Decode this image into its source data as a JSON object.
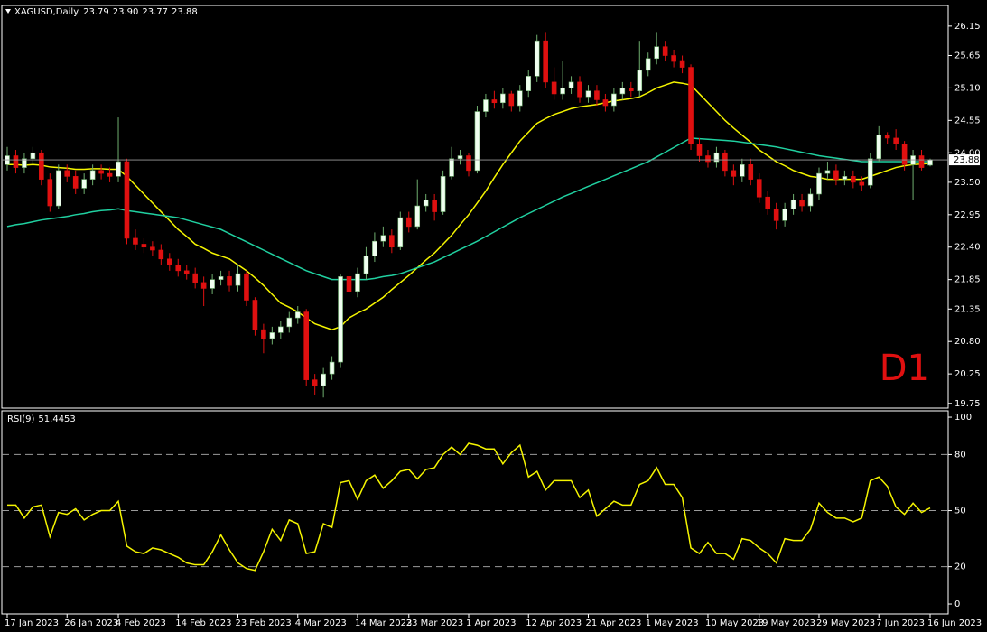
{
  "chart_data": [
    {
      "type": "candlestick",
      "title": "XAGUSD,Daily",
      "annotation": "D1",
      "value_labels": [
        "23.79",
        "23.90",
        "23.77",
        "23.88"
      ],
      "up_color": "#f0fff0",
      "down_color": "#e01010",
      "wick_color": "#6fae6f",
      "ylim": [
        19.67,
        26.5
      ],
      "yticks": [
        19.75,
        20.25,
        {
          "value": 20.8,
          "label": "20.80"
        },
        21.35,
        21.85,
        {
          "value": 22.4,
          "label": "22.40"
        },
        22.95,
        {
          "value": 23.5,
          "label": "23.50"
        },
        {
          "value": 24,
          "label": "24.00"
        },
        24.55,
        {
          "value": 25.1,
          "label": "25.10"
        },
        25.65,
        26.15
      ],
      "categories": [
        "17 Jan 2023",
        null,
        null,
        null,
        null,
        null,
        null,
        "26 Jan 2023",
        null,
        null,
        null,
        null,
        null,
        "4 Feb 2023",
        null,
        null,
        null,
        null,
        null,
        null,
        "14 Feb 2023",
        null,
        null,
        null,
        null,
        null,
        null,
        "23 Feb 2023",
        null,
        null,
        null,
        null,
        null,
        null,
        "4 Mar 2023",
        null,
        null,
        null,
        null,
        null,
        null,
        "14 Mar 2023",
        null,
        null,
        null,
        null,
        null,
        "23 Mar 2023",
        null,
        null,
        null,
        null,
        null,
        null,
        "1 Apr 2023",
        null,
        null,
        null,
        null,
        null,
        null,
        "12 Apr 2023",
        null,
        null,
        null,
        null,
        null,
        null,
        "21 Apr 2023",
        null,
        null,
        null,
        null,
        null,
        null,
        "1 May 2023",
        null,
        null,
        null,
        null,
        null,
        null,
        "10 May 2023",
        null,
        null,
        null,
        null,
        null,
        "19 May 2023",
        null,
        null,
        null,
        null,
        null,
        null,
        "29 May 2023",
        null,
        null,
        null,
        null,
        null,
        null,
        "7 Jun 2023",
        null,
        null,
        null,
        null,
        null,
        "16 Jun 2023"
      ],
      "ohlc": [
        [
          23.8,
          24.1,
          23.7,
          23.95
        ],
        [
          23.95,
          24.05,
          23.65,
          23.75
        ],
        [
          23.75,
          24.0,
          23.65,
          23.9
        ],
        [
          23.9,
          24.1,
          23.8,
          24.0
        ],
        [
          24.0,
          24.05,
          23.45,
          23.55
        ],
        [
          23.55,
          23.65,
          23.0,
          23.1
        ],
        [
          23.1,
          23.8,
          23.05,
          23.7
        ],
        [
          23.7,
          23.8,
          23.5,
          23.6
        ],
        [
          23.6,
          23.7,
          23.3,
          23.4
        ],
        [
          23.4,
          23.65,
          23.3,
          23.55
        ],
        [
          23.55,
          23.8,
          23.45,
          23.7
        ],
        [
          23.7,
          23.8,
          23.55,
          23.65
        ],
        [
          23.65,
          23.75,
          23.5,
          23.6
        ],
        [
          23.6,
          24.6,
          23.5,
          23.85
        ],
        [
          23.85,
          23.9,
          22.45,
          22.55
        ],
        [
          22.55,
          22.7,
          22.35,
          22.45
        ],
        [
          22.45,
          22.55,
          22.3,
          22.4
        ],
        [
          22.4,
          22.5,
          22.25,
          22.35
        ],
        [
          22.35,
          22.45,
          22.1,
          22.2
        ],
        [
          22.2,
          22.3,
          22.0,
          22.1
        ],
        [
          22.1,
          22.2,
          21.9,
          22.0
        ],
        [
          22.0,
          22.1,
          21.85,
          21.95
        ],
        [
          21.95,
          22.05,
          21.7,
          21.8
        ],
        [
          21.8,
          21.9,
          21.4,
          21.7
        ],
        [
          21.7,
          21.95,
          21.6,
          21.85
        ],
        [
          21.85,
          22.0,
          21.75,
          21.9
        ],
        [
          21.9,
          22.0,
          21.65,
          21.75
        ],
        [
          21.75,
          22.1,
          21.65,
          21.95
        ],
        [
          21.95,
          22.0,
          21.4,
          21.5
        ],
        [
          21.5,
          21.55,
          20.9,
          21.0
        ],
        [
          21.0,
          21.1,
          20.6,
          20.85
        ],
        [
          20.85,
          21.05,
          20.75,
          20.95
        ],
        [
          20.95,
          21.15,
          20.85,
          21.05
        ],
        [
          21.05,
          21.3,
          20.95,
          21.2
        ],
        [
          21.2,
          21.4,
          21.1,
          21.3
        ],
        [
          21.3,
          21.35,
          20.05,
          20.15
        ],
        [
          20.15,
          20.25,
          19.9,
          20.05
        ],
        [
          20.05,
          20.35,
          19.85,
          20.25
        ],
        [
          20.25,
          20.55,
          20.15,
          20.45
        ],
        [
          20.45,
          21.95,
          20.35,
          21.9
        ],
        [
          21.9,
          22.0,
          21.55,
          21.65
        ],
        [
          21.65,
          22.05,
          21.55,
          21.95
        ],
        [
          21.95,
          22.4,
          21.85,
          22.25
        ],
        [
          22.25,
          22.65,
          22.15,
          22.5
        ],
        [
          22.5,
          22.75,
          22.4,
          22.6
        ],
        [
          22.6,
          22.7,
          22.3,
          22.4
        ],
        [
          22.4,
          23.0,
          22.35,
          22.9
        ],
        [
          22.9,
          23.0,
          22.65,
          22.75
        ],
        [
          22.75,
          23.55,
          22.7,
          23.1
        ],
        [
          23.1,
          23.3,
          23.0,
          23.2
        ],
        [
          23.2,
          23.3,
          22.85,
          23.0
        ],
        [
          23.0,
          23.7,
          22.95,
          23.6
        ],
        [
          23.6,
          24.1,
          23.55,
          23.9
        ],
        [
          23.9,
          24.05,
          23.8,
          23.95
        ],
        [
          23.95,
          24.0,
          23.6,
          23.7
        ],
        [
          23.7,
          24.8,
          23.65,
          24.7
        ],
        [
          24.7,
          25.0,
          24.6,
          24.9
        ],
        [
          24.9,
          25.05,
          24.75,
          24.85
        ],
        [
          24.85,
          25.1,
          24.75,
          25.0
        ],
        [
          25.0,
          25.05,
          24.7,
          24.8
        ],
        [
          24.8,
          25.15,
          24.7,
          25.05
        ],
        [
          25.05,
          25.4,
          24.95,
          25.3
        ],
        [
          25.3,
          26.0,
          25.2,
          25.9
        ],
        [
          25.9,
          26.05,
          25.1,
          25.2
        ],
        [
          25.2,
          25.45,
          24.9,
          25.0
        ],
        [
          25.0,
          25.55,
          24.9,
          25.1
        ],
        [
          25.1,
          25.3,
          25.0,
          25.2
        ],
        [
          25.2,
          25.3,
          24.85,
          24.95
        ],
        [
          24.95,
          25.15,
          24.85,
          25.05
        ],
        [
          25.05,
          25.15,
          24.8,
          24.9
        ],
        [
          24.9,
          25.0,
          24.7,
          24.8
        ],
        [
          24.8,
          25.1,
          24.7,
          25.0
        ],
        [
          25.0,
          25.2,
          24.9,
          25.1
        ],
        [
          25.1,
          25.2,
          24.95,
          25.05
        ],
        [
          25.05,
          25.9,
          24.95,
          25.4
        ],
        [
          25.4,
          25.7,
          25.3,
          25.6
        ],
        [
          25.6,
          26.05,
          25.5,
          25.8
        ],
        [
          25.8,
          25.9,
          25.55,
          25.65
        ],
        [
          25.65,
          25.75,
          25.45,
          25.55
        ],
        [
          25.55,
          25.65,
          25.35,
          25.45
        ],
        [
          25.45,
          25.5,
          24.05,
          24.15
        ],
        [
          24.15,
          24.25,
          23.85,
          23.95
        ],
        [
          23.95,
          24.05,
          23.75,
          23.85
        ],
        [
          23.85,
          24.1,
          23.75,
          24.0
        ],
        [
          24.0,
          24.05,
          23.6,
          23.7
        ],
        [
          23.7,
          23.8,
          23.45,
          23.6
        ],
        [
          23.6,
          23.9,
          23.5,
          23.8
        ],
        [
          23.8,
          23.9,
          23.45,
          23.55
        ],
        [
          23.55,
          23.65,
          23.15,
          23.25
        ],
        [
          23.25,
          23.35,
          22.95,
          23.05
        ],
        [
          23.05,
          23.15,
          22.7,
          22.85
        ],
        [
          22.85,
          23.15,
          22.75,
          23.05
        ],
        [
          23.05,
          23.3,
          22.95,
          23.2
        ],
        [
          23.2,
          23.3,
          23.0,
          23.1
        ],
        [
          23.1,
          23.4,
          23.0,
          23.3
        ],
        [
          23.3,
          23.75,
          23.2,
          23.65
        ],
        [
          23.65,
          23.85,
          23.55,
          23.7
        ],
        [
          23.7,
          23.8,
          23.45,
          23.55
        ],
        [
          23.55,
          23.7,
          23.45,
          23.6
        ],
        [
          23.6,
          23.7,
          23.4,
          23.5
        ],
        [
          23.5,
          23.6,
          23.35,
          23.45
        ],
        [
          23.45,
          24.0,
          23.4,
          23.9
        ],
        [
          23.9,
          24.45,
          23.85,
          24.3
        ],
        [
          24.3,
          24.35,
          24.15,
          24.25
        ],
        [
          24.25,
          24.4,
          24.05,
          24.15
        ],
        [
          24.15,
          24.2,
          23.7,
          23.8
        ],
        [
          23.8,
          24.05,
          23.2,
          23.95
        ],
        [
          23.95,
          24.05,
          23.7,
          23.75
        ],
        [
          23.79,
          23.9,
          23.77,
          23.88
        ]
      ],
      "series": [
        {
          "color": "#f5f500",
          "values": [
            23.8,
            23.8,
            23.79,
            23.8,
            23.79,
            23.76,
            23.75,
            23.74,
            23.72,
            23.72,
            23.73,
            23.73,
            23.72,
            23.72,
            23.6,
            23.45,
            23.3,
            23.15,
            23.0,
            22.85,
            22.7,
            22.58,
            22.45,
            22.38,
            22.3,
            22.25,
            22.2,
            22.1,
            22.0,
            21.88,
            21.75,
            21.6,
            21.45,
            21.38,
            21.3,
            21.2,
            21.1,
            21.05,
            21.0,
            21.05,
            21.2,
            21.28,
            21.35,
            21.45,
            21.55,
            21.68,
            21.8,
            21.92,
            22.05,
            22.18,
            22.3,
            22.45,
            22.6,
            22.78,
            22.95,
            23.15,
            23.35,
            23.58,
            23.8,
            24.0,
            24.2,
            24.35,
            24.5,
            24.58,
            24.65,
            24.7,
            24.75,
            24.78,
            24.8,
            24.82,
            24.85,
            24.88,
            24.9,
            24.92,
            24.95,
            25.02,
            25.1,
            25.15,
            25.2,
            25.18,
            25.15,
            25.0,
            24.85,
            24.7,
            24.55,
            24.42,
            24.3,
            24.18,
            24.05,
            23.95,
            23.85,
            23.78,
            23.7,
            23.65,
            23.6,
            23.58,
            23.55,
            23.55,
            23.55,
            23.55,
            23.55,
            23.6,
            23.65,
            23.7,
            23.75,
            23.78,
            23.8,
            23.81,
            23.82
          ]
        },
        {
          "color": "#20d0a0",
          "values": [
            22.75,
            22.78,
            22.8,
            22.83,
            22.86,
            22.88,
            22.9,
            22.92,
            22.95,
            22.97,
            23.0,
            23.02,
            23.03,
            23.05,
            23.02,
            23.0,
            22.98,
            22.96,
            22.94,
            22.92,
            22.9,
            22.86,
            22.82,
            22.78,
            22.74,
            22.7,
            22.63,
            22.56,
            22.49,
            22.42,
            22.35,
            22.28,
            22.21,
            22.14,
            22.07,
            22.0,
            21.95,
            21.9,
            21.85,
            21.85,
            21.85,
            21.85,
            21.85,
            21.87,
            21.9,
            21.92,
            21.95,
            22.0,
            22.05,
            22.1,
            22.15,
            22.22,
            22.29,
            22.36,
            22.43,
            22.5,
            22.58,
            22.66,
            22.74,
            22.82,
            22.9,
            22.97,
            23.04,
            23.11,
            23.18,
            23.25,
            23.31,
            23.37,
            23.43,
            23.49,
            23.55,
            23.61,
            23.67,
            23.73,
            23.79,
            23.85,
            23.93,
            24.01,
            24.09,
            24.17,
            24.25,
            24.24,
            24.23,
            24.22,
            24.21,
            24.2,
            24.18,
            24.16,
            24.14,
            24.12,
            24.1,
            24.07,
            24.04,
            24.01,
            23.98,
            23.95,
            23.93,
            23.91,
            23.89,
            23.87,
            23.85,
            23.85,
            23.85,
            23.85,
            23.85,
            23.85,
            23.85,
            23.85,
            23.85
          ]
        }
      ]
    },
    {
      "type": "line",
      "title": "RSI(9)",
      "color": "#f5f500",
      "level_color": "#9a9a9a",
      "ylim": [
        -5.3,
        103.4
      ],
      "yticks": [
        0,
        20,
        50,
        80,
        100
      ],
      "levels": [
        20,
        50,
        80
      ],
      "values": [
        53,
        53,
        46,
        52,
        53,
        36,
        49,
        48,
        51,
        45,
        48,
        50,
        50,
        55,
        31,
        28,
        27,
        30,
        29,
        27,
        25,
        22,
        21,
        21,
        28,
        37,
        29,
        22,
        19,
        18,
        28,
        40,
        34,
        45,
        43,
        27,
        28,
        43,
        41,
        65,
        66,
        56,
        66,
        69,
        62,
        66,
        71,
        72,
        67,
        72,
        73,
        80,
        84,
        80,
        86,
        85,
        83,
        83,
        75,
        81,
        85,
        68,
        71,
        61,
        66,
        66,
        66,
        57,
        61,
        47,
        51,
        55,
        53,
        53,
        64,
        66,
        73,
        64,
        64,
        57,
        30,
        27,
        33,
        27,
        27,
        24,
        35,
        34,
        30,
        27,
        22,
        35,
        34,
        34,
        40,
        54,
        49,
        46,
        46,
        44,
        46,
        66,
        68,
        63,
        52,
        48,
        54,
        49,
        51.4453
      ]
    }
  ]
}
